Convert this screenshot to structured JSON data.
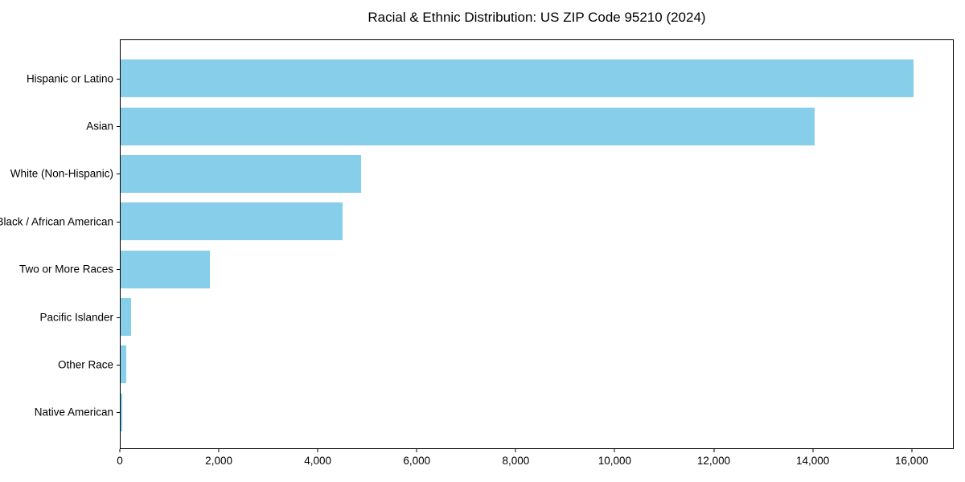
{
  "chart_data": {
    "type": "bar",
    "orientation": "horizontal",
    "title": "Racial & Ethnic Distribution: US ZIP Code 95210 (2024)",
    "categories": [
      "Hispanic or Latino",
      "Asian",
      "White (Non-Hispanic)",
      "Black / African American",
      "Two or More Races",
      "Pacific Islander",
      "Other Race",
      "Native American"
    ],
    "values": [
      16050,
      14050,
      4860,
      4500,
      1800,
      210,
      115,
      30
    ],
    "xlabel": "",
    "ylabel": "",
    "xlim": [
      0,
      16850
    ],
    "xticks": [
      {
        "value": 0,
        "label": "0"
      },
      {
        "value": 2000,
        "label": "2,000"
      },
      {
        "value": 4000,
        "label": "4,000"
      },
      {
        "value": 6000,
        "label": "6,000"
      },
      {
        "value": 8000,
        "label": "8,000"
      },
      {
        "value": 10000,
        "label": "10,000"
      },
      {
        "value": 12000,
        "label": "12,000"
      },
      {
        "value": 14000,
        "label": "14,000"
      },
      {
        "value": 16000,
        "label": "16,000"
      }
    ],
    "bar_color": "#87CEEB",
    "axis_color": "#000000",
    "background_color": "#ffffff",
    "grid": false,
    "legend": "none"
  }
}
